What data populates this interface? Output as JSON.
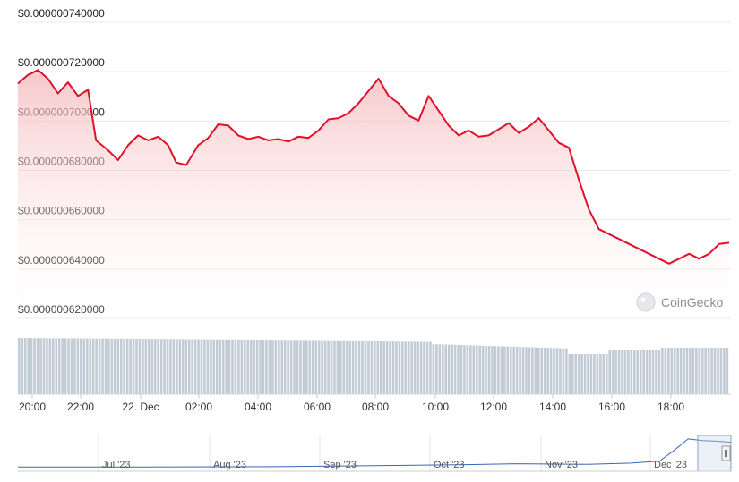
{
  "watermark": "CoinGecko",
  "colors": {
    "line": "#e0102b",
    "area": "#f5b5b8",
    "volume": "#c2ccd6",
    "grid": "#e8e8e8",
    "nav_line": "#3a66b0"
  },
  "chart_data": {
    "type": "line",
    "ylim": [
      6.2e-07,
      7.4e-07
    ],
    "y_ticks": [
      "$0.000000620000",
      "$0.000000640000",
      "$0.000000660000",
      "$0.000000680000",
      "$0.000000700000",
      "$0.000000720000",
      "$0.000000740000"
    ],
    "x_ticks": [
      "20:00",
      "22:00",
      "22. Dec",
      "02:00",
      "04:00",
      "06:00",
      "08:00",
      "10:00",
      "12:00",
      "14:00",
      "16:00",
      "18:00"
    ],
    "price": [
      [
        0,
        7.13e-07
      ],
      [
        0.5,
        7.165e-07
      ],
      [
        1,
        7.185e-07
      ],
      [
        1.5,
        7.15e-07
      ],
      [
        2,
        7.09e-07
      ],
      [
        2.5,
        7.135e-07
      ],
      [
        3,
        7.08e-07
      ],
      [
        3.5,
        7.105e-07
      ],
      [
        3.9,
        6.9e-07
      ],
      [
        4.5,
        6.86e-07
      ],
      [
        5,
        6.82e-07
      ],
      [
        5.5,
        6.88e-07
      ],
      [
        6,
        6.92e-07
      ],
      [
        6.5,
        6.9e-07
      ],
      [
        7,
        6.915e-07
      ],
      [
        7.5,
        6.88e-07
      ],
      [
        7.9,
        6.81e-07
      ],
      [
        8.4,
        6.8e-07
      ],
      [
        9,
        6.88e-07
      ],
      [
        9.5,
        6.91e-07
      ],
      [
        10,
        6.965e-07
      ],
      [
        10.5,
        6.96e-07
      ],
      [
        11,
        6.92e-07
      ],
      [
        11.5,
        6.905e-07
      ],
      [
        12,
        6.915e-07
      ],
      [
        12.5,
        6.9e-07
      ],
      [
        13,
        6.905e-07
      ],
      [
        13.5,
        6.895e-07
      ],
      [
        14,
        6.915e-07
      ],
      [
        14.5,
        6.91e-07
      ],
      [
        15,
        6.94e-07
      ],
      [
        15.5,
        6.985e-07
      ],
      [
        16,
        6.99e-07
      ],
      [
        16.5,
        7.01e-07
      ],
      [
        17,
        7.05e-07
      ],
      [
        17.5,
        7.1e-07
      ],
      [
        18,
        7.15e-07
      ],
      [
        18.5,
        7.08e-07
      ],
      [
        19,
        7.05e-07
      ],
      [
        19.5,
        7e-07
      ],
      [
        20,
        6.98e-07
      ],
      [
        20.5,
        7.08e-07
      ],
      [
        21,
        7.02e-07
      ],
      [
        21.5,
        6.96e-07
      ],
      [
        22,
        6.92e-07
      ],
      [
        22.5,
        6.94e-07
      ],
      [
        23,
        6.915e-07
      ],
      [
        23.5,
        6.92e-07
      ],
      [
        24,
        6.945e-07
      ],
      [
        24.5,
        6.97e-07
      ],
      [
        25,
        6.93e-07
      ],
      [
        25.5,
        6.955e-07
      ],
      [
        26,
        6.99e-07
      ],
      [
        26.5,
        6.94e-07
      ],
      [
        27,
        6.89e-07
      ],
      [
        27.5,
        6.87e-07
      ],
      [
        28,
        6.74e-07
      ],
      [
        28.5,
        6.62e-07
      ],
      [
        29,
        6.54e-07
      ],
      [
        29.5,
        6.52e-07
      ],
      [
        30,
        6.5e-07
      ],
      [
        30.5,
        6.48e-07
      ],
      [
        31,
        6.46e-07
      ],
      [
        31.5,
        6.44e-07
      ],
      [
        32,
        6.42e-07
      ],
      [
        32.5,
        6.4e-07
      ],
      [
        33,
        6.42e-07
      ],
      [
        33.5,
        6.44e-07
      ],
      [
        34,
        6.42e-07
      ],
      [
        34.5,
        6.44e-07
      ],
      [
        35,
        6.48e-07
      ],
      [
        35.5,
        6.485e-07
      ]
    ],
    "volume_bars": 230,
    "navigator": {
      "labels": [
        "Jul '23",
        "Aug '23",
        "Sep '23",
        "Oct '23",
        "Nov '23",
        "Dec '23"
      ],
      "points": [
        [
          0,
          0.1
        ],
        [
          0.18,
          0.1
        ],
        [
          0.36,
          0.11
        ],
        [
          0.5,
          0.14
        ],
        [
          0.62,
          0.17
        ],
        [
          0.7,
          0.2
        ],
        [
          0.8,
          0.18
        ],
        [
          0.86,
          0.22
        ],
        [
          0.9,
          0.28
        ],
        [
          0.92,
          0.6
        ],
        [
          0.94,
          0.95
        ],
        [
          0.96,
          0.9
        ],
        [
          0.98,
          0.88
        ],
        [
          1,
          0.85
        ]
      ]
    }
  }
}
